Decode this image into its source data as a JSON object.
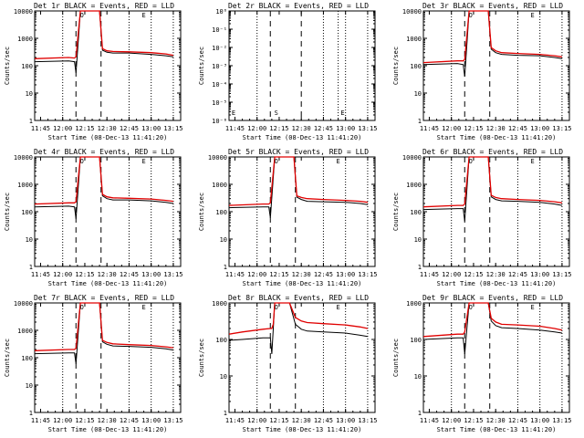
{
  "colors": {
    "events": "#000000",
    "lld": "#e00000",
    "axis": "#000000",
    "background": "#ffffff"
  },
  "common": {
    "ylabel": "Counts/sec",
    "xlabel": "Start Time (08-Dec-13 11:41:20)",
    "x_ticks": [
      "11:45",
      "12:00",
      "12:15",
      "12:30",
      "12:45",
      "13:00",
      "13:15"
    ],
    "y_ticks": [
      "1",
      "10",
      "100",
      "1000",
      "10000"
    ],
    "y_ticks_small": [
      "10⁻⁶",
      "10⁻⁵",
      "10⁻⁴",
      "10⁻³",
      "10⁻²",
      "10⁻¹",
      "10⁰"
    ],
    "markers": {
      "circle": "O",
      "s": "S",
      "e": "E"
    }
  },
  "chart_data": [
    {
      "type": "line",
      "title": "Det 1r BLACK = Events, RED = LLD",
      "log_y": true,
      "ylim": [
        1,
        10000
      ],
      "xlim": [
        "11:41",
        "13:20"
      ],
      "series": [
        {
          "name": "Events",
          "x": [
            "11:41",
            "12:04",
            "12:08",
            "12:09",
            "12:12",
            "12:14",
            "12:20",
            "12:25",
            "12:27",
            "12:30",
            "12:34",
            "12:45",
            "13:00",
            "13:10",
            "13:15"
          ],
          "values": [
            140,
            150,
            140,
            55,
            10000,
            10000,
            10000,
            10000,
            370,
            310,
            290,
            290,
            260,
            230,
            210
          ]
        },
        {
          "name": "LLD",
          "x": [
            "11:41",
            "12:04",
            "12:08",
            "12:09",
            "12:12",
            "12:14",
            "12:20",
            "12:25",
            "12:27",
            "12:30",
            "12:34",
            "12:45",
            "13:00",
            "13:10",
            "13:15"
          ],
          "values": [
            180,
            200,
            190,
            210,
            10000,
            10000,
            10000,
            10000,
            420,
            350,
            330,
            320,
            300,
            270,
            240
          ]
        }
      ]
    },
    {
      "type": "line",
      "title": "Det 2r BLACK = Events, RED = LLD",
      "log_y": true,
      "ylim": [
        1e-06,
        1
      ],
      "xlim": [
        "11:41",
        "13:20"
      ],
      "series": []
    },
    {
      "type": "line",
      "title": "Det 3r BLACK = Events, RED = LLD",
      "log_y": true,
      "ylim": [
        1,
        10000
      ],
      "xlim": [
        "11:41",
        "13:20"
      ],
      "series": [
        {
          "name": "Events",
          "x": [
            "11:41",
            "12:04",
            "12:08",
            "12:09",
            "12:12",
            "12:14",
            "12:20",
            "12:25",
            "12:27",
            "12:30",
            "12:34",
            "12:45",
            "13:00",
            "13:10",
            "13:15"
          ],
          "values": [
            110,
            120,
            110,
            40,
            10000,
            10000,
            10000,
            10000,
            400,
            300,
            260,
            240,
            230,
            200,
            180
          ]
        },
        {
          "name": "LLD",
          "x": [
            "11:41",
            "12:04",
            "12:08",
            "12:09",
            "12:12",
            "12:14",
            "12:20",
            "12:25",
            "12:27",
            "12:30",
            "12:34",
            "12:45",
            "13:00",
            "13:10",
            "13:15"
          ],
          "values": [
            130,
            150,
            150,
            170,
            10000,
            10000,
            10000,
            10000,
            460,
            350,
            300,
            280,
            260,
            230,
            210
          ]
        }
      ]
    },
    {
      "type": "line",
      "title": "Det 4r BLACK = Events, RED = LLD",
      "log_y": true,
      "ylim": [
        1,
        10000
      ],
      "xlim": [
        "11:41",
        "13:20"
      ],
      "series": [
        {
          "name": "Events",
          "x": [
            "11:41",
            "12:04",
            "12:08",
            "12:09",
            "12:12",
            "12:14",
            "12:20",
            "12:25",
            "12:27",
            "12:30",
            "12:34",
            "12:45",
            "13:00",
            "13:10",
            "13:15"
          ],
          "values": [
            150,
            160,
            150,
            55,
            10000,
            10000,
            10000,
            10000,
            380,
            300,
            270,
            270,
            250,
            220,
            200
          ]
        },
        {
          "name": "LLD",
          "x": [
            "11:41",
            "12:04",
            "12:08",
            "12:09",
            "12:12",
            "12:14",
            "12:20",
            "12:25",
            "12:27",
            "12:30",
            "12:34",
            "12:45",
            "13:00",
            "13:10",
            "13:15"
          ],
          "values": [
            190,
            210,
            210,
            230,
            10000,
            10000,
            10000,
            10000,
            430,
            350,
            320,
            310,
            290,
            260,
            240
          ]
        }
      ]
    },
    {
      "type": "line",
      "title": "Det 5r BLACK = Events, RED = LLD",
      "log_y": true,
      "ylim": [
        1,
        10000
      ],
      "xlim": [
        "11:41",
        "13:20"
      ],
      "series": [
        {
          "name": "Events",
          "x": [
            "11:41",
            "12:04",
            "12:08",
            "12:09",
            "12:12",
            "12:14",
            "12:20",
            "12:25",
            "12:27",
            "12:30",
            "12:34",
            "12:45",
            "13:00",
            "13:10",
            "13:15"
          ],
          "values": [
            140,
            150,
            150,
            60,
            10000,
            10000,
            10000,
            10000,
            340,
            280,
            240,
            230,
            220,
            200,
            180
          ]
        },
        {
          "name": "LLD",
          "x": [
            "11:41",
            "12:04",
            "12:08",
            "12:09",
            "12:12",
            "12:14",
            "12:20",
            "12:25",
            "12:27",
            "12:30",
            "12:34",
            "12:45",
            "13:00",
            "13:10",
            "13:15"
          ],
          "values": [
            170,
            190,
            190,
            210,
            10000,
            10000,
            10000,
            10000,
            380,
            330,
            300,
            280,
            260,
            240,
            220
          ]
        }
      ]
    },
    {
      "type": "line",
      "title": "Det 6r BLACK = Events, RED = LLD",
      "log_y": true,
      "ylim": [
        1,
        10000
      ],
      "xlim": [
        "11:41",
        "13:20"
      ],
      "series": [
        {
          "name": "Events",
          "x": [
            "11:41",
            "12:04",
            "12:08",
            "12:09",
            "12:12",
            "12:14",
            "12:20",
            "12:25",
            "12:27",
            "12:30",
            "12:34",
            "12:45",
            "13:00",
            "13:10",
            "13:15"
          ],
          "values": [
            120,
            130,
            130,
            45,
            10000,
            10000,
            10000,
            10000,
            350,
            280,
            250,
            240,
            220,
            190,
            170
          ]
        },
        {
          "name": "LLD",
          "x": [
            "11:41",
            "12:04",
            "12:08",
            "12:09",
            "12:12",
            "12:14",
            "12:20",
            "12:25",
            "12:27",
            "12:30",
            "12:34",
            "12:45",
            "13:00",
            "13:10",
            "13:15"
          ],
          "values": [
            150,
            170,
            170,
            190,
            10000,
            10000,
            10000,
            10000,
            400,
            330,
            300,
            280,
            260,
            230,
            210
          ]
        }
      ]
    },
    {
      "type": "line",
      "title": "Det 7r BLACK = Events, RED = LLD",
      "log_y": true,
      "ylim": [
        1,
        10000
      ],
      "xlim": [
        "11:41",
        "13:20"
      ],
      "series": [
        {
          "name": "Events",
          "x": [
            "11:41",
            "12:04",
            "12:08",
            "12:09",
            "12:12",
            "12:14",
            "12:20",
            "12:25",
            "12:27",
            "12:30",
            "12:34",
            "12:45",
            "13:00",
            "13:10",
            "13:15"
          ],
          "values": [
            140,
            150,
            150,
            60,
            10000,
            10000,
            10000,
            10000,
            380,
            310,
            270,
            260,
            240,
            210,
            190
          ]
        },
        {
          "name": "LLD",
          "x": [
            "11:41",
            "12:04",
            "12:08",
            "12:09",
            "12:12",
            "12:14",
            "12:20",
            "12:25",
            "12:27",
            "12:30",
            "12:34",
            "12:45",
            "13:00",
            "13:10",
            "13:15"
          ],
          "values": [
            180,
            200,
            200,
            220,
            10000,
            10000,
            10000,
            10000,
            430,
            360,
            320,
            300,
            280,
            250,
            230
          ]
        }
      ]
    },
    {
      "type": "line",
      "title": "Det 8r BLACK = Events, RED = LLD",
      "log_y": true,
      "ylim": [
        1,
        1000
      ],
      "xlim": [
        "11:41",
        "13:20"
      ],
      "series": [
        {
          "name": "Events",
          "x": [
            "11:41",
            "11:50",
            "12:04",
            "12:09",
            "12:10",
            "12:11",
            "12:12",
            "12:14",
            "12:16",
            "12:18",
            "12:20",
            "12:22",
            "12:26",
            "12:30",
            "12:34",
            "12:45",
            "13:00",
            "13:10",
            "13:15"
          ],
          "values": [
            95,
            100,
            110,
            110,
            40,
            200,
            1000,
            1000,
            1000,
            1000,
            1000,
            1000,
            260,
            190,
            170,
            160,
            150,
            130,
            120
          ]
        },
        {
          "name": "LLD",
          "x": [
            "11:41",
            "11:50",
            "12:04",
            "12:09",
            "12:10",
            "12:11",
            "12:12",
            "12:14",
            "12:16",
            "12:18",
            "12:20",
            "12:22",
            "12:26",
            "12:30",
            "12:34",
            "12:45",
            "13:00",
            "13:10",
            "13:15"
          ],
          "values": [
            140,
            160,
            190,
            200,
            200,
            260,
            1000,
            1000,
            1000,
            1000,
            1000,
            1000,
            400,
            320,
            290,
            270,
            250,
            220,
            200
          ]
        }
      ]
    },
    {
      "type": "line",
      "title": "Det 9r BLACK = Events, RED = LLD",
      "log_y": true,
      "ylim": [
        1,
        1000
      ],
      "xlim": [
        "11:41",
        "13:20"
      ],
      "series": [
        {
          "name": "Events",
          "x": [
            "11:41",
            "12:04",
            "12:08",
            "12:09",
            "12:12",
            "12:14",
            "12:20",
            "12:25",
            "12:27",
            "12:30",
            "12:34",
            "12:45",
            "13:00",
            "13:10",
            "13:15"
          ],
          "values": [
            100,
            110,
            110,
            40,
            1000,
            1000,
            1000,
            1000,
            320,
            240,
            210,
            200,
            180,
            160,
            150
          ]
        },
        {
          "name": "LLD",
          "x": [
            "11:41",
            "12:04",
            "12:08",
            "12:09",
            "12:12",
            "12:14",
            "12:20",
            "12:25",
            "12:27",
            "12:30",
            "12:34",
            "12:45",
            "13:00",
            "13:10",
            "13:15"
          ],
          "values": [
            120,
            140,
            140,
            160,
            1000,
            1000,
            1000,
            1000,
            380,
            300,
            260,
            250,
            230,
            200,
            180
          ]
        }
      ]
    }
  ]
}
